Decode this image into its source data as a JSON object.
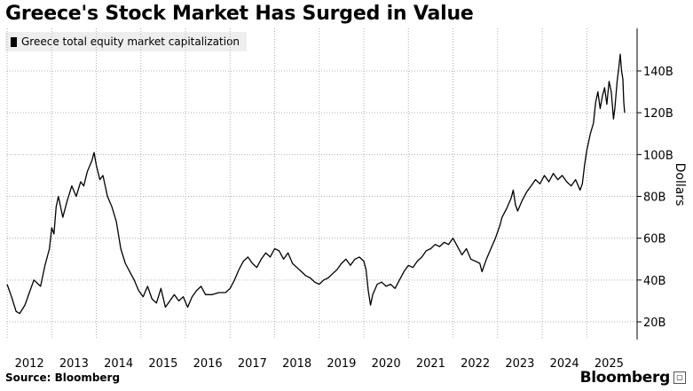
{
  "page": {
    "title": "Greece's Stock Market Has Surged in Value",
    "source": "Source: Bloomberg",
    "brand": "Bloomberg"
  },
  "chart_data": {
    "type": "line",
    "title": "Greece's Stock Market Has Surged in Value",
    "xlabel": "",
    "ylabel": "Dollars",
    "legend": "top-left",
    "grid": true,
    "xlim": [
      2012.0,
      2025.85
    ],
    "ylim": [
      20,
      160
    ],
    "x_ticks": [
      "2012",
      "2013",
      "2014",
      "2015",
      "2016",
      "2017",
      "2018",
      "2019",
      "2020",
      "2021",
      "2022",
      "2023",
      "2024",
      "2025"
    ],
    "y_ticks": [
      {
        "value": 20,
        "label": "20B"
      },
      {
        "value": 40,
        "label": "40B"
      },
      {
        "value": 60,
        "label": "60B"
      },
      {
        "value": 80,
        "label": "80B"
      },
      {
        "value": 100,
        "label": "100B"
      },
      {
        "value": 120,
        "label": "120B"
      },
      {
        "value": 140,
        "label": "140B"
      }
    ],
    "series": [
      {
        "name": "Greece total equity market capitalization",
        "color": "#000000",
        "points": [
          [
            2012.0,
            38
          ],
          [
            2012.1,
            32
          ],
          [
            2012.2,
            25
          ],
          [
            2012.28,
            24
          ],
          [
            2012.4,
            28
          ],
          [
            2012.5,
            34
          ],
          [
            2012.6,
            40
          ],
          [
            2012.75,
            37
          ],
          [
            2012.85,
            47
          ],
          [
            2012.95,
            55
          ],
          [
            2013.0,
            65
          ],
          [
            2013.05,
            62
          ],
          [
            2013.1,
            75
          ],
          [
            2013.15,
            80
          ],
          [
            2013.25,
            70
          ],
          [
            2013.35,
            78
          ],
          [
            2013.45,
            85
          ],
          [
            2013.55,
            80
          ],
          [
            2013.65,
            87
          ],
          [
            2013.72,
            85
          ],
          [
            2013.8,
            92
          ],
          [
            2013.9,
            97
          ],
          [
            2013.95,
            101
          ],
          [
            2014.0,
            95
          ],
          [
            2014.08,
            88
          ],
          [
            2014.15,
            90
          ],
          [
            2014.25,
            80
          ],
          [
            2014.35,
            75
          ],
          [
            2014.45,
            68
          ],
          [
            2014.55,
            55
          ],
          [
            2014.65,
            48
          ],
          [
            2014.75,
            44
          ],
          [
            2014.85,
            40
          ],
          [
            2014.95,
            35
          ],
          [
            2015.05,
            32
          ],
          [
            2015.15,
            37
          ],
          [
            2015.25,
            31
          ],
          [
            2015.35,
            29
          ],
          [
            2015.45,
            36
          ],
          [
            2015.55,
            27
          ],
          [
            2015.65,
            30
          ],
          [
            2015.75,
            33
          ],
          [
            2015.85,
            30
          ],
          [
            2015.95,
            32
          ],
          [
            2016.05,
            27
          ],
          [
            2016.15,
            32
          ],
          [
            2016.25,
            35
          ],
          [
            2016.35,
            37
          ],
          [
            2016.45,
            33
          ],
          [
            2016.6,
            33
          ],
          [
            2016.75,
            34
          ],
          [
            2016.9,
            34
          ],
          [
            2017.0,
            36
          ],
          [
            2017.1,
            40
          ],
          [
            2017.2,
            45
          ],
          [
            2017.3,
            49
          ],
          [
            2017.4,
            51
          ],
          [
            2017.5,
            48
          ],
          [
            2017.6,
            46
          ],
          [
            2017.7,
            50
          ],
          [
            2017.8,
            53
          ],
          [
            2017.9,
            51
          ],
          [
            2018.0,
            55
          ],
          [
            2018.1,
            54
          ],
          [
            2018.2,
            50
          ],
          [
            2018.3,
            53
          ],
          [
            2018.4,
            48
          ],
          [
            2018.5,
            46
          ],
          [
            2018.6,
            44
          ],
          [
            2018.7,
            42
          ],
          [
            2018.8,
            41
          ],
          [
            2018.9,
            39
          ],
          [
            2019.0,
            38
          ],
          [
            2019.1,
            40
          ],
          [
            2019.2,
            41
          ],
          [
            2019.3,
            43
          ],
          [
            2019.4,
            45
          ],
          [
            2019.5,
            48
          ],
          [
            2019.6,
            50
          ],
          [
            2019.7,
            47
          ],
          [
            2019.8,
            50
          ],
          [
            2019.9,
            51
          ],
          [
            2020.0,
            49
          ],
          [
            2020.05,
            45
          ],
          [
            2020.1,
            35
          ],
          [
            2020.15,
            28
          ],
          [
            2020.2,
            33
          ],
          [
            2020.3,
            38
          ],
          [
            2020.4,
            39
          ],
          [
            2020.5,
            37
          ],
          [
            2020.6,
            38
          ],
          [
            2020.7,
            36
          ],
          [
            2020.8,
            40
          ],
          [
            2020.9,
            44
          ],
          [
            2021.0,
            47
          ],
          [
            2021.1,
            46
          ],
          [
            2021.2,
            49
          ],
          [
            2021.3,
            51
          ],
          [
            2021.4,
            54
          ],
          [
            2021.5,
            55
          ],
          [
            2021.6,
            57
          ],
          [
            2021.7,
            56
          ],
          [
            2021.8,
            58
          ],
          [
            2021.9,
            57
          ],
          [
            2022.0,
            60
          ],
          [
            2022.1,
            56
          ],
          [
            2022.2,
            52
          ],
          [
            2022.3,
            55
          ],
          [
            2022.4,
            50
          ],
          [
            2022.5,
            49
          ],
          [
            2022.6,
            48
          ],
          [
            2022.65,
            44
          ],
          [
            2022.75,
            50
          ],
          [
            2022.85,
            55
          ],
          [
            2022.95,
            60
          ],
          [
            2023.05,
            66
          ],
          [
            2023.1,
            70
          ],
          [
            2023.2,
            74
          ],
          [
            2023.3,
            79
          ],
          [
            2023.35,
            83
          ],
          [
            2023.4,
            76
          ],
          [
            2023.45,
            73
          ],
          [
            2023.55,
            78
          ],
          [
            2023.65,
            82
          ],
          [
            2023.75,
            85
          ],
          [
            2023.85,
            88
          ],
          [
            2023.95,
            86
          ],
          [
            2024.05,
            90
          ],
          [
            2024.15,
            87
          ],
          [
            2024.25,
            91
          ],
          [
            2024.35,
            88
          ],
          [
            2024.45,
            90
          ],
          [
            2024.55,
            87
          ],
          [
            2024.65,
            85
          ],
          [
            2024.75,
            88
          ],
          [
            2024.85,
            83
          ],
          [
            2024.9,
            86
          ],
          [
            2024.95,
            95
          ],
          [
            2025.0,
            102
          ],
          [
            2025.08,
            110
          ],
          [
            2025.15,
            115
          ],
          [
            2025.2,
            125
          ],
          [
            2025.25,
            130
          ],
          [
            2025.3,
            122
          ],
          [
            2025.35,
            128
          ],
          [
            2025.4,
            132
          ],
          [
            2025.45,
            124
          ],
          [
            2025.5,
            135
          ],
          [
            2025.55,
            130
          ],
          [
            2025.6,
            117
          ],
          [
            2025.63,
            122
          ],
          [
            2025.68,
            135
          ],
          [
            2025.72,
            142
          ],
          [
            2025.75,
            148
          ],
          [
            2025.78,
            140
          ],
          [
            2025.81,
            136
          ],
          [
            2025.83,
            125
          ],
          [
            2025.85,
            120
          ]
        ]
      }
    ]
  }
}
